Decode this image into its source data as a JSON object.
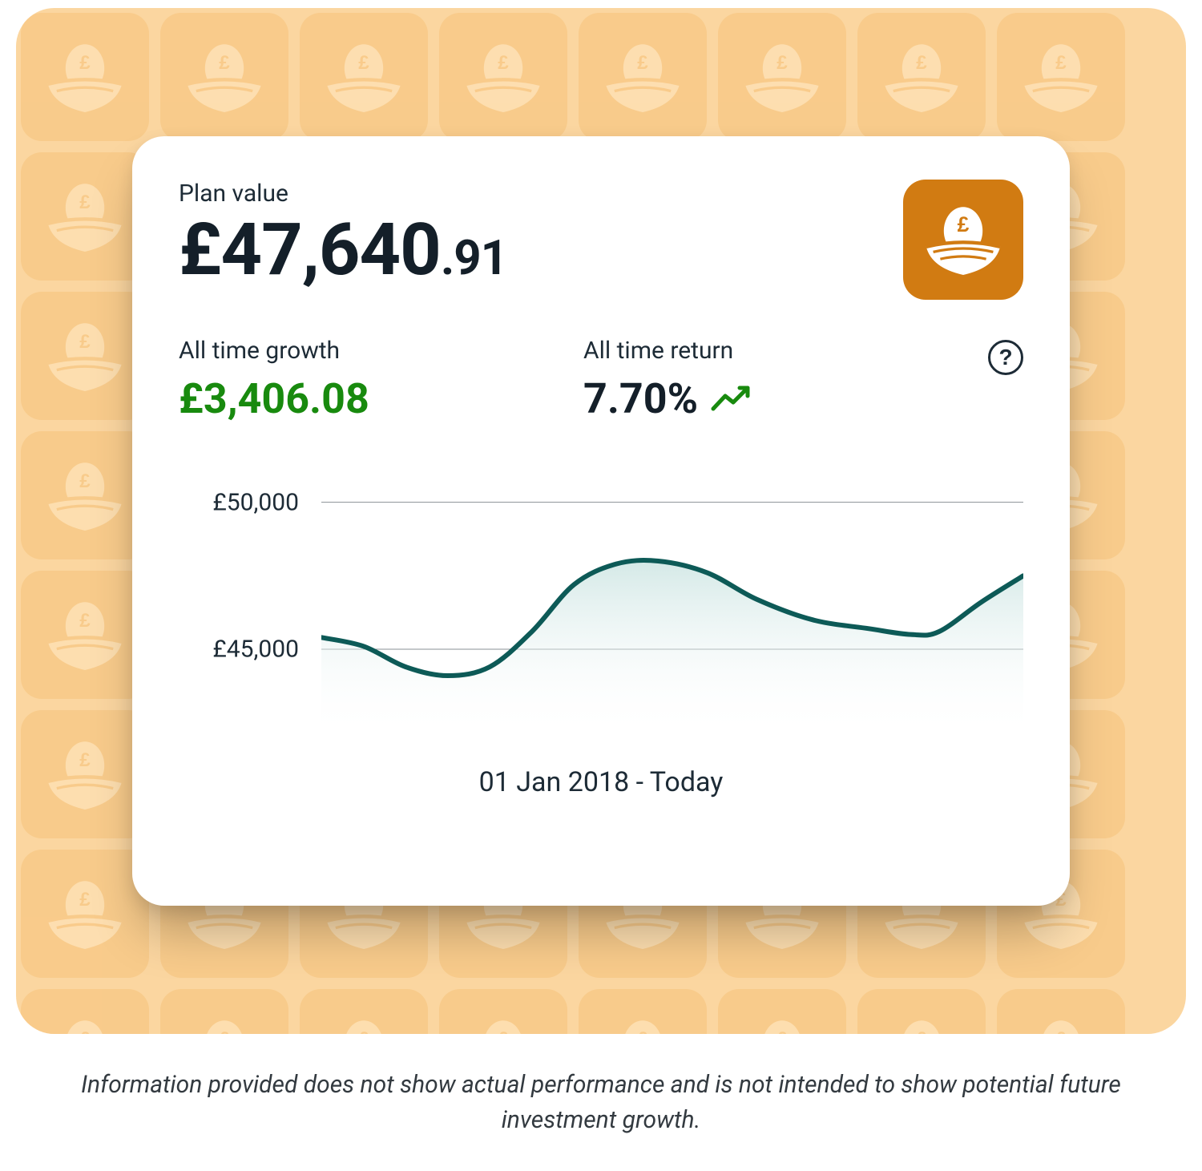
{
  "colors": {
    "page_bg": "#ffffff",
    "panel_bg": "#fbd6a0",
    "tile_bg": "#f7c37a",
    "tile_icon": "#ffe5bd",
    "card_bg": "#ffffff",
    "text_dark": "#141f29",
    "text_body": "#1d2b36",
    "growth_green": "#188a0e",
    "arrow_green": "#188a0e",
    "nest_badge_bg": "#d17b12",
    "nest_badge_fg": "#ffffff",
    "chart_line": "#0d5a57",
    "chart_fill_top": "#cfe6e4",
    "chart_fill_bottom": "#ffffff",
    "grid_line": "#8a9094",
    "disclaimer": "#333a40"
  },
  "plan": {
    "label": "Plan value",
    "currency": "£",
    "value_int": "47,640",
    "value_dec": ".91"
  },
  "metrics": {
    "growth_label": "All time growth",
    "growth_value": "£3,406.08",
    "return_label": "All time return",
    "return_value": "7.70%"
  },
  "help_glyph": "?",
  "chart": {
    "type": "area",
    "y_ticks": [
      "£50,000",
      "£45,000"
    ],
    "y_tick_values": [
      50000,
      45000
    ],
    "y_domain": [
      42000,
      51000
    ],
    "line_width": 6,
    "grid_width": 1,
    "points": [
      {
        "x": 0.0,
        "y": 45400
      },
      {
        "x": 0.06,
        "y": 45100
      },
      {
        "x": 0.12,
        "y": 44400
      },
      {
        "x": 0.18,
        "y": 44100
      },
      {
        "x": 0.24,
        "y": 44400
      },
      {
        "x": 0.3,
        "y": 45600
      },
      {
        "x": 0.36,
        "y": 47200
      },
      {
        "x": 0.42,
        "y": 47900
      },
      {
        "x": 0.48,
        "y": 48000
      },
      {
        "x": 0.55,
        "y": 47600
      },
      {
        "x": 0.62,
        "y": 46700
      },
      {
        "x": 0.7,
        "y": 46000
      },
      {
        "x": 0.78,
        "y": 45700
      },
      {
        "x": 0.84,
        "y": 45500
      },
      {
        "x": 0.88,
        "y": 45600
      },
      {
        "x": 0.94,
        "y": 46600
      },
      {
        "x": 1.0,
        "y": 47500
      }
    ],
    "date_range": "01 Jan 2018 - Today"
  },
  "disclaimer": "Information provided does not show actual performance and is not intended to show potential future investment growth."
}
